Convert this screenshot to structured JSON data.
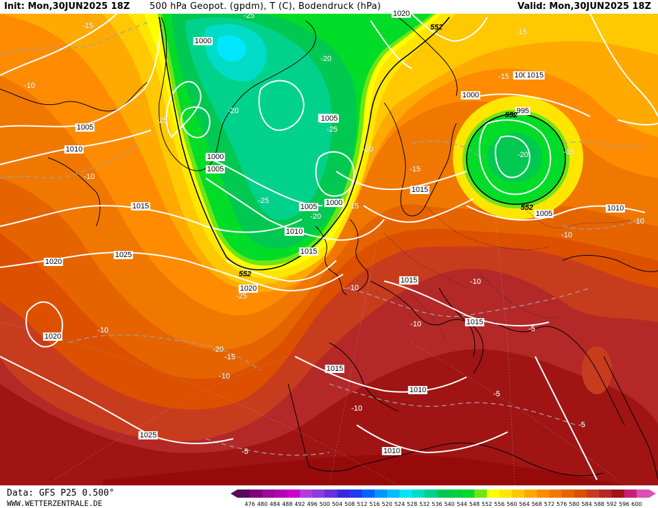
{
  "header": {
    "init": "Init: Mon,30JUN2025 18Z",
    "title": "500 hPa Geopot. (gpdm), T (C), Bodendruck (hPa)",
    "valid": "Valid: Mon,30JUN2025 18Z"
  },
  "footer": {
    "data_source": "Data: GFS P25 0.500°",
    "website": "WWW.WETTERZENTRALE.DE"
  },
  "legend": {
    "ticks": [
      "476",
      "480",
      "484",
      "488",
      "492",
      "496",
      "500",
      "504",
      "508",
      "512",
      "516",
      "520",
      "524",
      "528",
      "532",
      "536",
      "540",
      "544",
      "548",
      "552",
      "556",
      "560",
      "564",
      "568",
      "572",
      "576",
      "580",
      "584",
      "588",
      "592",
      "596",
      "600"
    ],
    "colors": [
      "#5a0a5a",
      "#800080",
      "#9b0a9b",
      "#b400b4",
      "#cc00cc",
      "#b43cdc",
      "#8c3cdc",
      "#6432dc",
      "#3c28dc",
      "#1e3cf0",
      "#0064ff",
      "#0096ff",
      "#00beff",
      "#00e6ff",
      "#00dcc8",
      "#00d28c",
      "#00c850",
      "#00d23c",
      "#00dc28",
      "#6ee614",
      "#ffff00",
      "#ffe600",
      "#ffc800",
      "#ffaa00",
      "#ff8c00",
      "#f07800",
      "#e66400",
      "#dc5000",
      "#c83c1e",
      "#b42828",
      "#a01414",
      "#c81e78",
      "#dc50b4"
    ]
  },
  "isobars": [
    {
      "text": "1000"
    },
    {
      "text": "1000"
    },
    {
      "text": "1005"
    },
    {
      "text": "1010"
    },
    {
      "text": "1005"
    },
    {
      "text": "1000"
    },
    {
      "text": "1005"
    },
    {
      "text": "1005"
    },
    {
      "text": "1000"
    },
    {
      "text": "1010"
    },
    {
      "text": "1015"
    },
    {
      "text": "1020"
    },
    {
      "text": "1025"
    },
    {
      "text": "1020"
    },
    {
      "text": "1015"
    },
    {
      "text": "1010"
    },
    {
      "text": "1005"
    },
    {
      "text": "1015"
    },
    {
      "text": "1015"
    },
    {
      "text": "1015"
    },
    {
      "text": "1015"
    },
    {
      "text": "1010"
    },
    {
      "text": "1025"
    },
    {
      "text": "1020"
    },
    {
      "text": "1000"
    },
    {
      "text": "995"
    },
    {
      "text": "1005"
    },
    {
      "text": "1010"
    },
    {
      "text": "1020"
    },
    {
      "text": "1015"
    }
  ],
  "temperatures": [
    {
      "text": "-15"
    },
    {
      "text": "-10"
    },
    {
      "text": "-25"
    },
    {
      "text": "-20"
    },
    {
      "text": "-20"
    },
    {
      "text": "-25"
    },
    {
      "text": "-25"
    },
    {
      "text": "-20"
    },
    {
      "text": "-25"
    },
    {
      "text": "-15"
    },
    {
      "text": "-20"
    },
    {
      "text": "-15"
    },
    {
      "text": "-15"
    },
    {
      "text": "-15"
    },
    {
      "text": "-15"
    },
    {
      "text": "-20"
    },
    {
      "text": "-10"
    },
    {
      "text": "-10"
    },
    {
      "text": "-10"
    },
    {
      "text": "-10"
    },
    {
      "text": "-10"
    },
    {
      "text": "-10"
    },
    {
      "text": "-5"
    },
    {
      "text": "-5"
    },
    {
      "text": "-5"
    },
    {
      "text": "-5"
    },
    {
      "text": "-10"
    },
    {
      "text": "-20"
    },
    {
      "text": "-15"
    },
    {
      "text": "-10"
    },
    {
      "text": "-25"
    },
    {
      "text": "-10"
    }
  ],
  "heights": [
    {
      "text": "552"
    },
    {
      "text": "552"
    },
    {
      "text": "552"
    },
    {
      "text": "552"
    }
  ]
}
